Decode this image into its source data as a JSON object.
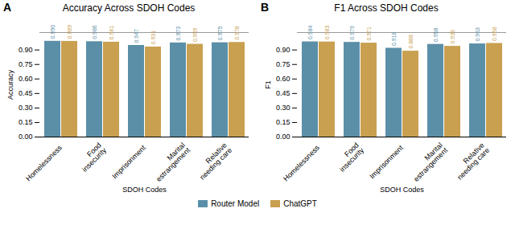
{
  "chart_data": [
    {
      "type": "bar",
      "title": "Accuracy Across SDOH Codes",
      "xlabel": "SDOH Codes",
      "ylabel": "Accuracy",
      "annotations": [
        "A"
      ],
      "categories": [
        "Homelessness",
        "Food\ninsecurity",
        "Imprisonment",
        "Marital\nestrangement",
        "Relative\nneeding care"
      ],
      "series": [
        {
          "name": "Router Model",
          "color": "#5b8fa8",
          "values": [
            0.99,
            0.986,
            0.947,
            0.973,
            0.975
          ],
          "value_labels": [
            "0.990",
            "0.986",
            "0.947",
            "0.973",
            "0.975"
          ]
        },
        {
          "name": "ChatGPT",
          "color": "#c9a050",
          "values": [
            0.989,
            0.981,
            0.931,
            0.959,
            0.978
          ],
          "value_labels": [
            "0.989",
            "0.981",
            "0.931",
            "0.959",
            "0.978"
          ]
        }
      ],
      "ylim": [
        0.0,
        1.08
      ],
      "yticks": [
        {
          "value": 0.0,
          "label": "0.00"
        },
        0.15,
        {
          "value": 0.3,
          "label": "0.30"
        },
        0.45,
        {
          "value": 0.6,
          "label": "0.60"
        },
        0.75,
        {
          "value": 0.9,
          "label": "0.90"
        }
      ],
      "data_labels": true,
      "legend": "bottom"
    },
    {
      "type": "bar",
      "title": "F1 Across SDOH Codes",
      "xlabel": "SDOH Codes",
      "ylabel": "F1",
      "annotations": [
        "B"
      ],
      "categories": [
        "Homelessness",
        "Food\ninsecurity",
        "Imprisonment",
        "Marital\nestrangement",
        "Relative\nneeding care"
      ],
      "series": [
        {
          "name": "Router Model",
          "color": "#5b8fa8",
          "values": [
            0.984,
            0.979,
            0.918,
            0.958,
            0.963
          ],
          "value_labels": [
            "0.984",
            "0.979",
            "0.918",
            "0.958",
            "0.963"
          ]
        },
        {
          "name": "ChatGPT",
          "color": "#c9a050",
          "values": [
            0.983,
            0.971,
            0.888,
            0.938,
            0.968
          ],
          "value_labels": [
            "0.983",
            "0.971",
            "0.888",
            "0.938",
            "0.968"
          ]
        }
      ],
      "ylim": [
        0.0,
        1.08
      ],
      "yticks": [
        {
          "value": 0.0,
          "label": "0.00"
        },
        0.15,
        {
          "value": 0.3,
          "label": "0.30"
        },
        0.45,
        {
          "value": 0.6,
          "label": "0.60"
        },
        0.75,
        {
          "value": 0.9,
          "label": "0.90"
        }
      ],
      "data_labels": true,
      "legend": "bottom"
    }
  ]
}
